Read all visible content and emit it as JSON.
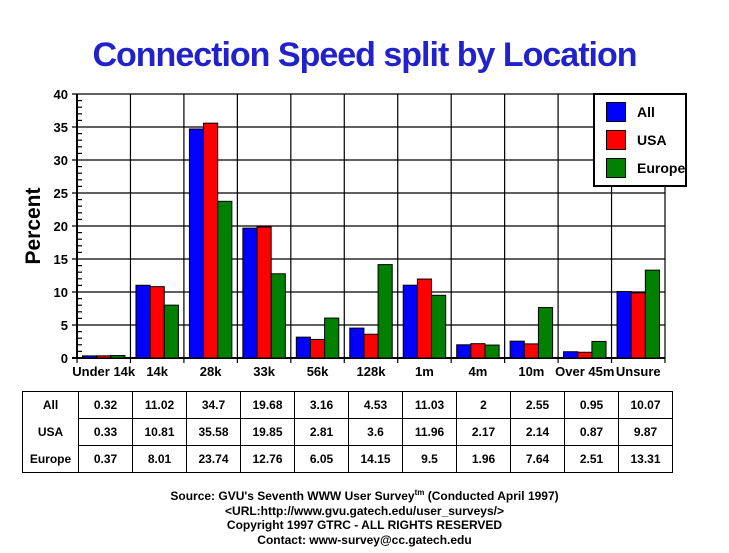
{
  "title": "Connection Speed split by Location",
  "chart_data": {
    "type": "bar",
    "title": "Connection Speed split by Location",
    "xlabel": "",
    "ylabel": "Percent",
    "ylim": [
      0,
      40
    ],
    "ytick_major": 5,
    "ytick_minor": 1,
    "grid": true,
    "legend_position": "top-right",
    "categories": [
      "Under 14k",
      "14k",
      "28k",
      "33k",
      "56k",
      "128k",
      "1m",
      "4m",
      "10m",
      "Over 45m",
      "Unsure"
    ],
    "series": [
      {
        "name": "All",
        "color": "#0000FF",
        "values": [
          0.32,
          11.02,
          34.7,
          19.68,
          3.16,
          4.53,
          11.03,
          2,
          2.55,
          0.95,
          10.07
        ]
      },
      {
        "name": "USA",
        "color": "#FF0000",
        "values": [
          0.33,
          10.81,
          35.58,
          19.85,
          2.81,
          3.6,
          11.96,
          2.17,
          2.14,
          0.87,
          9.87
        ]
      },
      {
        "name": "Europe",
        "color": "#008000",
        "values": [
          0.37,
          8.01,
          23.74,
          12.76,
          6.05,
          14.15,
          9.5,
          1.96,
          7.64,
          2.51,
          13.31
        ]
      }
    ]
  },
  "colors": {
    "title": "#2222CC",
    "axis": "#000000",
    "background": "#FFFFFF"
  },
  "footer": {
    "source_prefix": "Source: GVU's Seventh WWW User Survey",
    "source_sup": "tm",
    "source_suffix": " (Conducted April 1997)",
    "url_line": "<URL:http://www.gvu.gatech.edu/user_surveys/>",
    "copyright_line": "Copyright 1997 GTRC - ALL RIGHTS RESERVED",
    "contact_line": "Contact: www-survey@cc.gatech.edu"
  }
}
